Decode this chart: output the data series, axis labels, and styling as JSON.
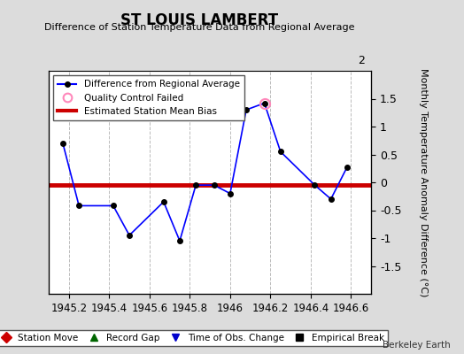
{
  "title": "ST LOUIS LAMBERT",
  "subtitle": "Difference of Station Temperature Data from Regional Average",
  "ylabel_right": "Monthly Temperature Anomaly Difference (°C)",
  "watermark": "Berkeley Earth",
  "xlim": [
    1945.1,
    1946.7
  ],
  "ylim": [
    -2.0,
    2.0
  ],
  "xticks": [
    1945.2,
    1945.4,
    1945.6,
    1945.8,
    1946.0,
    1946.2,
    1946.4,
    1946.6
  ],
  "yticks_right": [
    -1.5,
    -1.0,
    -0.5,
    0.0,
    0.5,
    1.0,
    1.5
  ],
  "ytick_labels_right": [
    "-1.5",
    "-1",
    "-0.5",
    "0",
    "0.5",
    "1",
    "1.5"
  ],
  "line_x": [
    1945.17,
    1945.25,
    1945.42,
    1945.5,
    1945.67,
    1945.75,
    1945.83,
    1945.92,
    1946.0,
    1946.08,
    1946.17,
    1946.25,
    1946.42,
    1946.5,
    1946.58
  ],
  "line_y": [
    0.7,
    -0.42,
    -0.42,
    -0.95,
    -0.35,
    -1.05,
    -0.05,
    -0.05,
    -0.2,
    1.3,
    1.42,
    0.55,
    -0.05,
    -0.3,
    0.27
  ],
  "qc_x": [
    1946.17
  ],
  "qc_y": [
    1.42
  ],
  "bias_y": -0.05,
  "line_color": "#0000FF",
  "line_marker_color": "#000000",
  "line_marker_size": 4,
  "line_width": 1.2,
  "bias_color": "#CC0000",
  "bias_linewidth": 3.5,
  "qc_marker_color": "#FF88BB",
  "qc_marker_size": 8,
  "bg_color": "#DCDCDC",
  "plot_bg_color": "#FFFFFF",
  "grid_color": "#BBBBBB",
  "legend1_labels": [
    "Difference from Regional Average",
    "Quality Control Failed",
    "Estimated Station Mean Bias"
  ],
  "legend2_labels": [
    "Station Move",
    "Record Gap",
    "Time of Obs. Change",
    "Empirical Break"
  ],
  "legend2_colors": [
    "#CC0000",
    "#006600",
    "#0000CC",
    "#000000"
  ],
  "legend2_markers": [
    "D",
    "^",
    "v",
    "s"
  ]
}
